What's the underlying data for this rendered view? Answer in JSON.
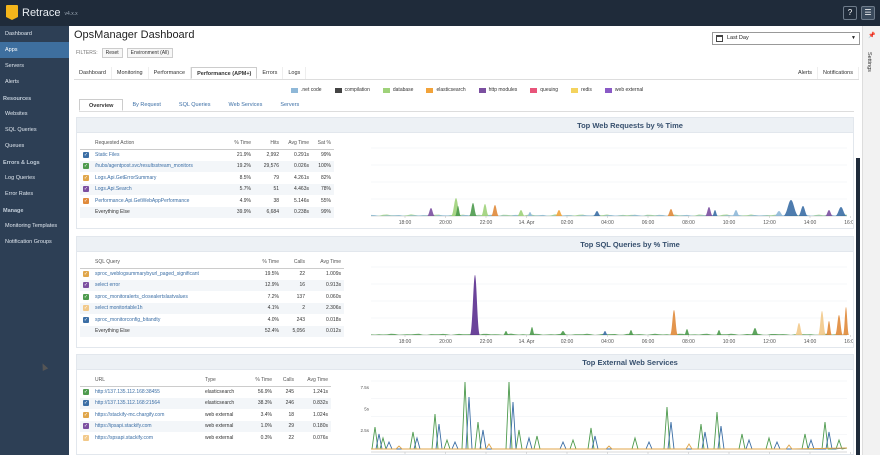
{
  "app": {
    "name": "Retrace",
    "version": "v4.x.x"
  },
  "topbar": {
    "help_label": "?",
    "menu_label": "☰"
  },
  "sidebar": {
    "items": [
      {
        "label": "Dashboard",
        "type": "item",
        "active": false
      },
      {
        "label": "Apps",
        "type": "item",
        "active": true
      },
      {
        "label": "Servers",
        "type": "item",
        "active": false
      },
      {
        "label": "Alerts",
        "type": "item",
        "active": false
      },
      {
        "label": "Resources",
        "type": "heading",
        "active": false
      },
      {
        "label": "Websites",
        "type": "item",
        "active": false
      },
      {
        "label": "SQL Queries",
        "type": "item",
        "active": false
      },
      {
        "label": "Queues",
        "type": "item",
        "active": false
      },
      {
        "label": "Errors & Logs",
        "type": "heading",
        "active": false
      },
      {
        "label": "Log Queries",
        "type": "item",
        "active": false
      },
      {
        "label": "Error Rates",
        "type": "item",
        "active": false
      },
      {
        "label": "Manage",
        "type": "heading",
        "active": false
      },
      {
        "label": "Monitoring Templates",
        "type": "item",
        "active": false
      },
      {
        "label": "Notification Groups",
        "type": "item",
        "active": false
      }
    ]
  },
  "page": {
    "title": "OpsManager Dashboard"
  },
  "filters": {
    "label": "FILTERS:",
    "reset": "Reset",
    "environment": "Environment (All)"
  },
  "date_range": {
    "value": "Last Day"
  },
  "main_tabs": [
    {
      "label": "Dashboard",
      "active": false
    },
    {
      "label": "Monitoring",
      "active": false
    },
    {
      "label": "Performance",
      "active": false
    },
    {
      "label": "Performance (APM+)",
      "active": true
    },
    {
      "label": "Errors",
      "active": false
    },
    {
      "label": "Logs",
      "active": false
    }
  ],
  "right_tabs": [
    {
      "label": "Alerts"
    },
    {
      "label": "Notifications"
    }
  ],
  "legend": [
    {
      "label": ".net code",
      "color": "#8fb8d8"
    },
    {
      "label": "compilation",
      "color": "#444444"
    },
    {
      "label": "database",
      "color": "#9fd27a"
    },
    {
      "label": "elasticsearch",
      "color": "#f2a33a"
    },
    {
      "label": "http modules",
      "color": "#7b4fa0"
    },
    {
      "label": "queuing",
      "color": "#e8547a"
    },
    {
      "label": "redis",
      "color": "#f4d35e"
    },
    {
      "label": "web external",
      "color": "#8a5ac6"
    }
  ],
  "sub_tabs": [
    {
      "label": "Overview",
      "active": true
    },
    {
      "label": "By Request",
      "active": false
    },
    {
      "label": "SQL Queries",
      "active": false
    },
    {
      "label": "Web Services",
      "active": false
    },
    {
      "label": "Servers",
      "active": false
    }
  ],
  "settings": {
    "label": "Settings",
    "pin": "📌"
  },
  "x_ticks": [
    "18:00",
    "20:00",
    "22:00",
    "14. Apr",
    "02:00",
    "04:00",
    "06:00",
    "08:00",
    "10:00",
    "12:00",
    "14:00",
    "16:00"
  ],
  "panels": {
    "web_requests": {
      "title": "Top Web Requests by % Time",
      "headers": [
        "Requested Action",
        "% Time",
        "Hits",
        "Avg Time",
        "Sat %"
      ],
      "rows": [
        {
          "name": "Static Files",
          "pct": "21.9%",
          "hits": "2,992",
          "avg": "0.291s",
          "sat": "99%",
          "color": "#3b6ea5"
        },
        {
          "name": "/hubs/agentpost.svc/resultsstream_monitors",
          "pct": "19.2%",
          "hits": "29,576",
          "avg": "0.026s",
          "sat": "100%",
          "color": "#4d9a4d"
        },
        {
          "name": "Logs.Api.GetErrorSummary",
          "pct": "8.5%",
          "hits": "79",
          "avg": "4.261s",
          "sat": "82%",
          "color": "#e0a64a"
        },
        {
          "name": "Logs.Api.Search",
          "pct": "5.7%",
          "hits": "51",
          "avg": "4.463s",
          "sat": "78%",
          "color": "#7b4fa0"
        },
        {
          "name": "Performance.Api.GetWebAppPerformance",
          "pct": "4.9%",
          "hits": "38",
          "avg": "5.146s",
          "sat": "55%",
          "color": "#e08a3a"
        },
        {
          "name": "Everything Else",
          "pct": "39.9%",
          "hits": "6,684",
          "avg": "0.238s",
          "sat": "99%",
          "color": ""
        }
      ]
    },
    "sql_queries": {
      "title": "Top SQL Queries by % Time",
      "headers": [
        "SQL Query",
        "% Time",
        "Calls",
        "Avg Time"
      ],
      "rows": [
        {
          "name": "sproc_weblogsummarybyurl_paged_significant",
          "pct": "19.5%",
          "calls": "22",
          "avg": "1.009s",
          "color": "#e0a64a"
        },
        {
          "name": "select error",
          "pct": "12.9%",
          "calls": "16",
          "avg": "0.913s",
          "color": "#7b4fa0"
        },
        {
          "name": "sproc_monitoralerts_closealertslastvalues",
          "pct": "7.2%",
          "calls": "137",
          "avg": "0.060s",
          "color": "#4d9a4d"
        },
        {
          "name": "select monitortable1h",
          "pct": "4.1%",
          "calls": "2",
          "avg": "2.306s",
          "color": "#f2c98a"
        },
        {
          "name": "sproc_monitorconfig_bitandty",
          "pct": "4.0%",
          "calls": "243",
          "avg": "0.018s",
          "color": "#3b6ea5"
        },
        {
          "name": "Everything Else",
          "pct": "52.4%",
          "calls": "5,056",
          "avg": "0.012s",
          "color": ""
        }
      ]
    },
    "web_services": {
      "title": "Top External Web Services",
      "headers": [
        "URL",
        "Type",
        "% Time",
        "Calls",
        "Avg Time"
      ],
      "rows": [
        {
          "name": "http://137.135.112.168:38455",
          "type": "elasticsearch",
          "pct": "56.9%",
          "calls": "245",
          "avg": "1.241s",
          "color": "#4d9a4d"
        },
        {
          "name": "http://137.135.112.168:21564",
          "type": "elasticsearch",
          "pct": "38.3%",
          "calls": "246",
          "avg": "0.832s",
          "color": "#3b6ea5"
        },
        {
          "name": "https://stackify-mc.chargify.com",
          "type": "web external",
          "pct": "3.4%",
          "calls": "18",
          "avg": "1.024s",
          "color": "#e0a64a"
        },
        {
          "name": "https://ipsapi.stackify.com",
          "type": "web external",
          "pct": "1.0%",
          "calls": "29",
          "avg": "0.180s",
          "color": "#7b4fa0"
        },
        {
          "name": "https://spsapi.stackify.com",
          "type": "web external",
          "pct": "0.3%",
          "calls": "22",
          "avg": "0.076s",
          "color": "#f2c98a"
        }
      ],
      "y_ticks": [
        "7.5s",
        "5s",
        "2.5s"
      ]
    }
  }
}
